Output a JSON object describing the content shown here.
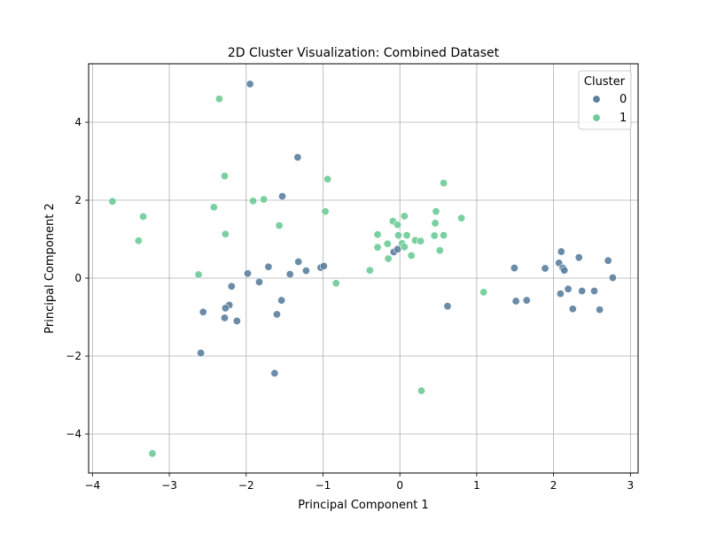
{
  "chart_data": {
    "type": "scatter",
    "title": "2D Cluster Visualization: Combined Dataset",
    "xlabel": "Principal Component 1",
    "ylabel": "Principal Component 2",
    "xlim": [
      -4.05,
      3.1
    ],
    "ylim": [
      -5.0,
      5.5
    ],
    "xticks": [
      -4,
      -3,
      -2,
      -1,
      0,
      1,
      2,
      3
    ],
    "yticks": [
      -4,
      -2,
      0,
      2,
      4
    ],
    "grid": true,
    "legend": {
      "title": "Cluster",
      "placement": "top-right"
    },
    "series": [
      {
        "name": "0",
        "color": "#5b7f9f",
        "points": [
          [
            -1.95,
            4.98
          ],
          [
            -1.33,
            3.1
          ],
          [
            -1.53,
            2.1
          ],
          [
            -1.32,
            0.42
          ],
          [
            -1.22,
            0.19
          ],
          [
            -1.03,
            0.27
          ],
          [
            -0.99,
            0.31
          ],
          [
            -1.43,
            0.1
          ],
          [
            -1.71,
            0.29
          ],
          [
            -1.98,
            0.12
          ],
          [
            -1.83,
            -0.1
          ],
          [
            -2.19,
            -0.21
          ],
          [
            -2.22,
            -0.69
          ],
          [
            -2.27,
            -0.77
          ],
          [
            -2.28,
            -1.02
          ],
          [
            -2.12,
            -1.1
          ],
          [
            -2.56,
            -0.87
          ],
          [
            -1.54,
            -0.57
          ],
          [
            -1.6,
            -0.93
          ],
          [
            -2.59,
            -1.92
          ],
          [
            -1.63,
            -2.44
          ],
          [
            -0.08,
            0.67
          ],
          [
            -0.03,
            0.74
          ],
          [
            0.62,
            -0.72
          ],
          [
            1.49,
            0.26
          ],
          [
            1.51,
            -0.59
          ],
          [
            1.65,
            -0.57
          ],
          [
            1.89,
            0.25
          ],
          [
            2.07,
            0.39
          ],
          [
            2.1,
            0.68
          ],
          [
            2.12,
            0.26
          ],
          [
            2.14,
            0.2
          ],
          [
            2.09,
            -0.4
          ],
          [
            2.19,
            -0.28
          ],
          [
            2.25,
            -0.79
          ],
          [
            2.33,
            0.53
          ],
          [
            2.37,
            -0.33
          ],
          [
            2.53,
            -0.33
          ],
          [
            2.6,
            -0.81
          ],
          [
            2.71,
            0.45
          ],
          [
            2.77,
            0.01
          ]
        ]
      },
      {
        "name": "1",
        "color": "#6ccb97",
        "points": [
          [
            -2.35,
            4.6
          ],
          [
            -2.28,
            2.62
          ],
          [
            -0.94,
            2.54
          ],
          [
            0.57,
            2.44
          ],
          [
            -1.77,
            2.02
          ],
          [
            -1.91,
            1.98
          ],
          [
            -3.74,
            1.97
          ],
          [
            -2.42,
            1.82
          ],
          [
            -0.97,
            1.71
          ],
          [
            -3.34,
            1.58
          ],
          [
            -1.57,
            1.35
          ],
          [
            -2.27,
            1.13
          ],
          [
            -3.4,
            0.96
          ],
          [
            -2.62,
            0.09
          ],
          [
            -0.83,
            -0.13
          ],
          [
            -0.39,
            0.2
          ],
          [
            -0.09,
            1.46
          ],
          [
            0.06,
            1.59
          ],
          [
            0.47,
            1.71
          ],
          [
            0.8,
            1.54
          ],
          [
            -0.03,
            1.37
          ],
          [
            0.46,
            1.41
          ],
          [
            -0.29,
            1.12
          ],
          [
            -0.02,
            1.1
          ],
          [
            0.09,
            1.1
          ],
          [
            0.45,
            1.09
          ],
          [
            0.57,
            1.1
          ],
          [
            0.2,
            0.97
          ],
          [
            0.27,
            0.95
          ],
          [
            0.03,
            0.89
          ],
          [
            -0.16,
            0.88
          ],
          [
            0.06,
            0.8
          ],
          [
            -0.29,
            0.79
          ],
          [
            0.52,
            0.71
          ],
          [
            0.15,
            0.58
          ],
          [
            -0.15,
            0.5
          ],
          [
            1.09,
            -0.36
          ],
          [
            0.28,
            -2.89
          ],
          [
            -3.22,
            -4.5
          ]
        ]
      }
    ]
  }
}
